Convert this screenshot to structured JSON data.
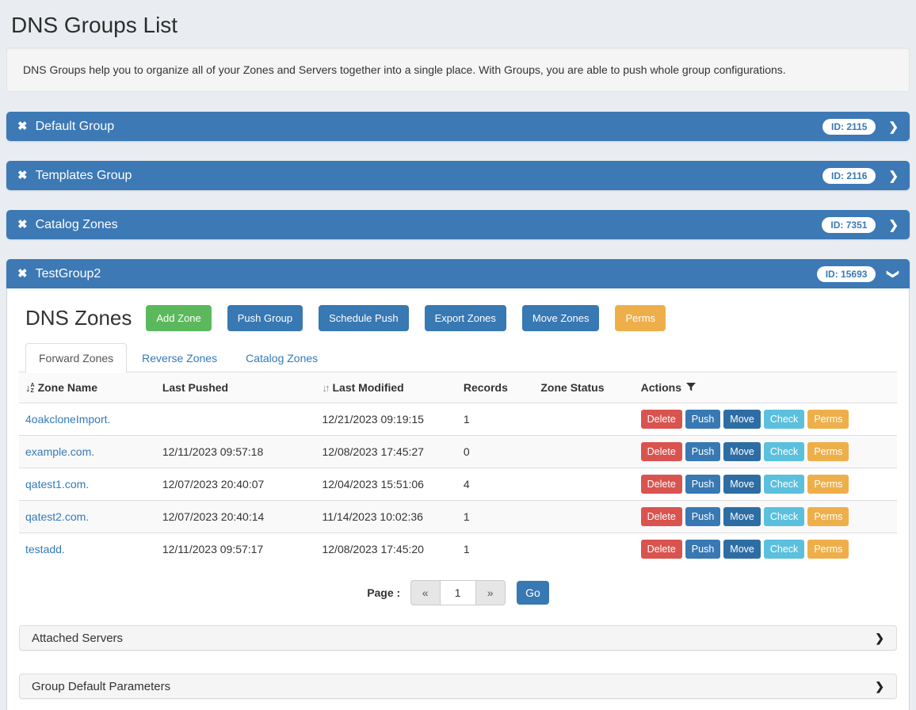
{
  "page": {
    "title": "DNS Groups List",
    "description": "DNS Groups help you to organize all of your Zones and Servers together into a single place. With Groups, you are able to push whole group configurations."
  },
  "icons": {
    "remove": "✖",
    "chevron": "❯",
    "sort_alpha_arrow": "↓",
    "sort_alpha_letters": [
      "A",
      "Z"
    ],
    "sort_updown": "↓↑"
  },
  "colors": {
    "group_header_blue": "#3c79b5",
    "button_green": "#5cb85c",
    "button_blue": "#3878b3",
    "button_dark_blue": "#2e6da4",
    "button_orange": "#eeaf4b",
    "button_red": "#d9534f",
    "button_light_blue": "#5bc0de",
    "link_blue": "#337ab7"
  },
  "groups": [
    {
      "name": "Default Group",
      "id_label": "ID: 2115",
      "expanded": false
    },
    {
      "name": "Templates Group",
      "id_label": "ID: 2116",
      "expanded": false
    },
    {
      "name": "Catalog Zones",
      "id_label": "ID: 7351",
      "expanded": false
    },
    {
      "name": "TestGroup2",
      "id_label": "ID: 15693",
      "expanded": true
    }
  ],
  "zones_section": {
    "heading": "DNS Zones",
    "toolbar": [
      {
        "label": "Add Zone",
        "variant": "success"
      },
      {
        "label": "Push Group",
        "variant": "primary"
      },
      {
        "label": "Schedule Push",
        "variant": "primary"
      },
      {
        "label": "Export Zones",
        "variant": "primary"
      },
      {
        "label": "Move Zones",
        "variant": "primary"
      },
      {
        "label": "Perms",
        "variant": "warning"
      }
    ],
    "tabs": [
      {
        "label": "Forward Zones",
        "active": true
      },
      {
        "label": "Reverse Zones",
        "active": false
      },
      {
        "label": "Catalog Zones",
        "active": false
      }
    ],
    "table": {
      "columns": [
        {
          "label": "Zone Name",
          "icon": "sort-alpha-down"
        },
        {
          "label": "Last Pushed",
          "icon": ""
        },
        {
          "label": "Last Modified",
          "icon": "sort-up-down"
        },
        {
          "label": "Records",
          "icon": ""
        },
        {
          "label": "Zone Status",
          "icon": ""
        },
        {
          "label": "Actions",
          "icon": "filter"
        }
      ],
      "action_buttons": [
        {
          "label": "Delete",
          "variant": "danger"
        },
        {
          "label": "Push",
          "variant": "push"
        },
        {
          "label": "Move",
          "variant": "move"
        },
        {
          "label": "Check",
          "variant": "info"
        },
        {
          "label": "Perms",
          "variant": "warning"
        }
      ],
      "rows": [
        {
          "zone": "4oakcloneImport.",
          "last_pushed": "",
          "last_modified": "12/21/2023 09:19:15",
          "records": "1",
          "zone_status": ""
        },
        {
          "zone": "example.com.",
          "last_pushed": "12/11/2023 09:57:18",
          "last_modified": "12/08/2023 17:45:27",
          "records": "0",
          "zone_status": ""
        },
        {
          "zone": "qatest1.com.",
          "last_pushed": "12/07/2023 20:40:07",
          "last_modified": "12/04/2023 15:51:06",
          "records": "4",
          "zone_status": ""
        },
        {
          "zone": "qatest2.com.",
          "last_pushed": "12/07/2023 20:40:14",
          "last_modified": "11/14/2023 10:02:36",
          "records": "1",
          "zone_status": ""
        },
        {
          "zone": "testadd.",
          "last_pushed": "12/11/2023 09:57:17",
          "last_modified": "12/08/2023 17:45:20",
          "records": "1",
          "zone_status": ""
        }
      ]
    },
    "pagination": {
      "label": "Page :",
      "prev": "«",
      "value": "1",
      "next": "»",
      "go": "Go"
    },
    "sub_panels": [
      {
        "label": "Attached Servers"
      },
      {
        "label": "Group Default Parameters"
      }
    ]
  }
}
